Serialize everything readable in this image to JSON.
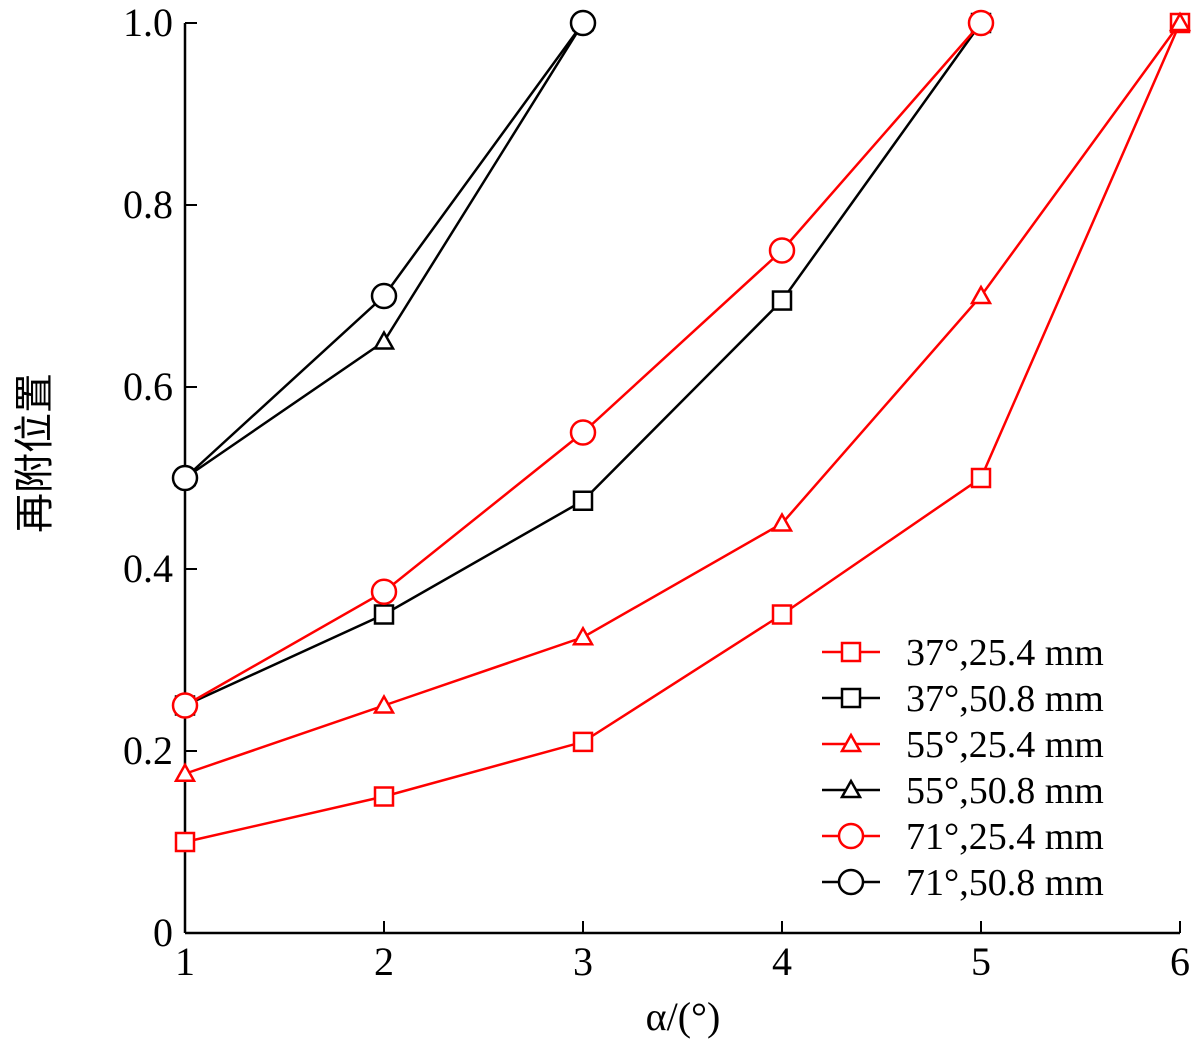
{
  "chart_data": {
    "type": "line",
    "xlabel": "α/(°)",
    "ylabel": "再附位置",
    "x_ticks": [
      "1",
      "2",
      "3",
      "4",
      "5",
      "6"
    ],
    "y_ticks": [
      "0",
      "0.2",
      "0.4",
      "0.6",
      "0.8",
      "1.0"
    ],
    "xlim": [
      1,
      6
    ],
    "ylim": [
      0,
      1.0
    ],
    "grid": false,
    "legend_position": "bottom-right",
    "series": [
      {
        "name": "37°,25.4 mm",
        "color": "#ff0000",
        "marker": "square",
        "x": [
          1,
          2,
          3,
          4,
          5,
          6
        ],
        "y": [
          0.1,
          0.15,
          0.21,
          0.35,
          0.5,
          1.0
        ]
      },
      {
        "name": "37°,50.8 mm",
        "color": "#000000",
        "marker": "square",
        "x": [
          1,
          2,
          3,
          4,
          5
        ],
        "y": [
          0.25,
          0.35,
          0.475,
          0.695,
          1.0
        ]
      },
      {
        "name": "55°,25.4 mm",
        "color": "#ff0000",
        "marker": "triangle",
        "x": [
          1,
          2,
          3,
          4,
          5,
          6
        ],
        "y": [
          0.175,
          0.25,
          0.325,
          0.45,
          0.7,
          1.0
        ]
      },
      {
        "name": "55°,50.8 mm",
        "color": "#000000",
        "marker": "triangle",
        "x": [
          1,
          2,
          3
        ],
        "y": [
          0.5,
          0.65,
          1.0
        ]
      },
      {
        "name": "71°,25.4 mm",
        "color": "#ff0000",
        "marker": "circle",
        "x": [
          1,
          2,
          3,
          4,
          5
        ],
        "y": [
          0.25,
          0.375,
          0.55,
          0.75,
          1.0
        ]
      },
      {
        "name": "71°,50.8 mm",
        "color": "#000000",
        "marker": "circle",
        "x": [
          1,
          2,
          3
        ],
        "y": [
          0.5,
          0.7,
          1.0
        ]
      }
    ]
  }
}
